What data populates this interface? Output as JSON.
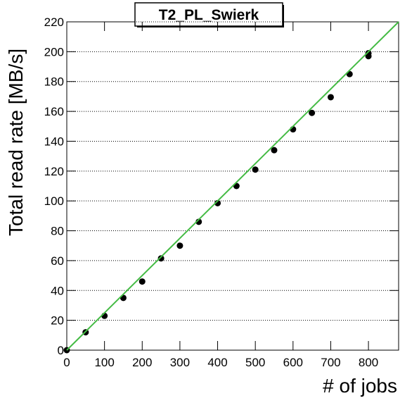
{
  "chart_data": {
    "type": "scatter",
    "title": "T2_PL_Swierk",
    "x_label": "# of jobs",
    "y_label": "Total read rate [MB/s]",
    "xlim": [
      0,
      880
    ],
    "ylim": [
      0,
      220
    ],
    "xticks": [
      0,
      100,
      200,
      300,
      400,
      500,
      600,
      700,
      800
    ],
    "yticks": [
      0,
      20,
      40,
      60,
      80,
      100,
      120,
      140,
      160,
      180,
      200,
      220
    ],
    "grid": true,
    "points": {
      "color": "#000000",
      "x": [
        0,
        50,
        100,
        150,
        200,
        250,
        300,
        350,
        400,
        450,
        500,
        550,
        600,
        650,
        700,
        750,
        800,
        800
      ],
      "y": [
        0,
        12,
        23,
        35,
        46,
        61.5,
        70,
        86,
        98.5,
        110,
        121,
        134,
        148,
        159,
        169.5,
        185,
        197,
        199
      ]
    },
    "fit": {
      "color": "#44bb44",
      "x": [
        0,
        880
      ],
      "y": [
        0,
        220
      ]
    }
  }
}
